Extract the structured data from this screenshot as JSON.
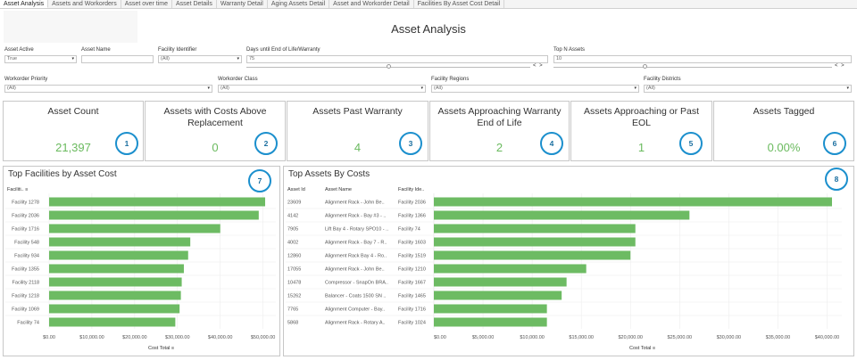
{
  "tabs": [
    "Asset Analysis",
    "Assets and Workorders",
    "Asset over time",
    "Asset Details",
    "Warranty Detail",
    "Aging Assets Detail",
    "Asset and Workorder Detail",
    "Facilities By Asset Cost Detail"
  ],
  "title": "Asset Analysis",
  "filters": {
    "asset_active": {
      "label": "Asset Active",
      "value": "True"
    },
    "asset_name": {
      "label": "Asset Name",
      "value": ""
    },
    "facility_identifier": {
      "label": "Facility Identifier",
      "value": "(All)"
    },
    "days_until_eol": {
      "label": "Days until End of Life/Warranty",
      "value": "75",
      "level": 0.5
    },
    "top_n_assets": {
      "label": "Top N Assets",
      "value": "10",
      "level": 0.33
    },
    "workorder_priority": {
      "label": "Workorder Priority",
      "value": "(All)"
    },
    "workorder_class": {
      "label": "Workorder Class",
      "value": "(All)"
    },
    "facility_regions": {
      "label": "Facility Regions",
      "value": "(All)"
    },
    "facility_districts": {
      "label": "Facility Districts",
      "value": "(All)"
    },
    "stepper_label": "< >"
  },
  "kpis": [
    {
      "title": "Asset Count",
      "value": "21,397",
      "badge": "1"
    },
    {
      "title": "Assets with Costs Above Replacement",
      "value": "0",
      "badge": "2"
    },
    {
      "title": "Assets Past Warranty",
      "value": "4",
      "badge": "3"
    },
    {
      "title": "Assets Approaching Warranty End of Life",
      "value": "2",
      "badge": "4"
    },
    {
      "title": "Assets Approaching or Past EOL",
      "value": "1",
      "badge": "5"
    },
    {
      "title": "Assets Tagged",
      "value": "0.00%",
      "badge": "6"
    }
  ],
  "colors": {
    "bar": "#6dbb63",
    "badge_border": "#1b8fcd",
    "kpi_value": "#6aba5e"
  },
  "icons": {
    "sort": "sort-icon",
    "dropdown": "caret-down-icon"
  },
  "facilities_panel": {
    "title": "Top Facilities by Asset Cost",
    "badge": "7",
    "column_header": "Faciliti..",
    "axis_title": "Cost Total",
    "xticks": [
      "$0.00",
      "$10,000.00",
      "$20,000.00",
      "$30,000.00",
      "$40,000.00",
      "$50,000.00"
    ],
    "xmax": 53000,
    "chart_data": {
      "type": "bar",
      "categories": [
        "Facility 1278",
        "Facility 2036",
        "Facility 1716",
        "Facility 548",
        "Facility 934",
        "Facility 1355",
        "Facility 2118",
        "Facility 1218",
        "Facility 1069",
        "Facility 74"
      ],
      "values": [
        50500,
        49000,
        40000,
        33000,
        32500,
        31500,
        31000,
        30800,
        30500,
        29500
      ],
      "xlabel": "Cost Total",
      "xlim": [
        0,
        53000
      ]
    }
  },
  "assets_panel": {
    "title": "Top Assets By Costs",
    "badge": "8",
    "headers": {
      "id": "Asset Id",
      "name": "Asset Name",
      "facility": "Facility Ide.."
    },
    "rows": [
      {
        "id": "23609",
        "name": "Alignment Rack - John Be..",
        "facility": "Facility 2036"
      },
      {
        "id": "4142",
        "name": "Alignment Rack - Bay #3 - ..",
        "facility": "Facility 1366"
      },
      {
        "id": "7905",
        "name": "Lift Bay 4 - Rotary SPO10 - ..",
        "facility": "Facility 74"
      },
      {
        "id": "4002",
        "name": "Alignment Rack - Bay 7 - R..",
        "facility": "Facility 1603"
      },
      {
        "id": "12860",
        "name": "Alignment Rack Bay 4 - Ro..",
        "facility": "Facility 1519"
      },
      {
        "id": "17055",
        "name": "Alignment Rack - John Be..",
        "facility": "Facility 1210"
      },
      {
        "id": "10478",
        "name": "Compressor - SnapOn BRA..",
        "facility": "Facility 1667"
      },
      {
        "id": "15262",
        "name": "Balancer - Coats 1500 SN ..",
        "facility": "Facility 1465"
      },
      {
        "id": "7765",
        "name": "Alignment Computer - Bay..",
        "facility": "Facility 1716"
      },
      {
        "id": "5868",
        "name": "Alignment Rack - Rotary A..",
        "facility": "Facility 1024"
      }
    ],
    "axis_title": "Cost Total",
    "xticks": [
      "$0.00",
      "$5,000.00",
      "$10,000.00",
      "$15,000.00",
      "$20,000.00",
      "$25,000.00",
      "$30,000.00",
      "$35,000.00",
      "$40,000.00"
    ],
    "xmax": 41500,
    "chart_data": {
      "type": "bar",
      "categories": [
        "23609",
        "4142",
        "7905",
        "4002",
        "12860",
        "17055",
        "10478",
        "15262",
        "7765",
        "5868"
      ],
      "values": [
        40500,
        26000,
        20500,
        20500,
        20000,
        15500,
        13500,
        13000,
        11500,
        11500
      ],
      "xlabel": "Cost Total",
      "xlim": [
        0,
        41500
      ]
    }
  }
}
